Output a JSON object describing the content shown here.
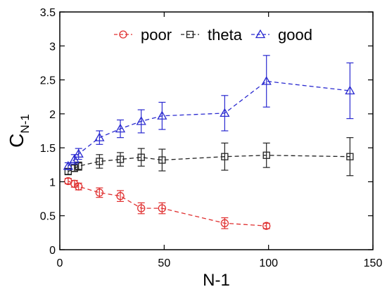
{
  "chart_data": {
    "type": "line",
    "title": "",
    "xlabel": "N-1",
    "ylabel_main": "C",
    "ylabel_sub": "N-1",
    "xlim": [
      0,
      150
    ],
    "ylim": [
      0,
      3.5
    ],
    "xticks": [
      0,
      50,
      100,
      150
    ],
    "yticks": [
      0,
      0.5,
      1,
      1.5,
      2,
      2.5,
      3,
      3.5
    ],
    "xtick_labels": [
      "0",
      "50",
      "100",
      "150"
    ],
    "ytick_labels": [
      "0",
      "0.5",
      "1",
      "1.5",
      "2",
      "2.5",
      "3",
      "3.5"
    ],
    "grid": false,
    "legend_position": "top",
    "series": [
      {
        "name": "poor",
        "color": "#e03030",
        "marker": "circle",
        "x": [
          4,
          7,
          9,
          19,
          29,
          39,
          49,
          79,
          99
        ],
        "y": [
          1.01,
          0.97,
          0.93,
          0.84,
          0.79,
          0.61,
          0.61,
          0.39,
          0.35
        ],
        "err": [
          0.04,
          0.05,
          0.05,
          0.07,
          0.08,
          0.08,
          0.08,
          0.08,
          0.04
        ]
      },
      {
        "name": "theta",
        "color": "#222222",
        "marker": "square",
        "x": [
          4,
          7,
          9,
          19,
          29,
          39,
          49,
          79,
          99,
          139
        ],
        "y": [
          1.15,
          1.2,
          1.23,
          1.3,
          1.33,
          1.36,
          1.32,
          1.37,
          1.39,
          1.37
        ],
        "err": [
          0.04,
          0.05,
          0.06,
          0.1,
          0.1,
          0.13,
          0.16,
          0.2,
          0.18,
          0.28
        ]
      },
      {
        "name": "good",
        "color": "#2a2ad0",
        "marker": "triangle",
        "x": [
          4,
          7,
          9,
          19,
          29,
          39,
          49,
          79,
          99,
          139
        ],
        "y": [
          1.23,
          1.33,
          1.41,
          1.65,
          1.78,
          1.89,
          1.97,
          2.01,
          2.48,
          2.34
        ],
        "err": [
          0.05,
          0.07,
          0.08,
          0.1,
          0.13,
          0.17,
          0.2,
          0.26,
          0.38,
          0.41
        ]
      }
    ]
  }
}
